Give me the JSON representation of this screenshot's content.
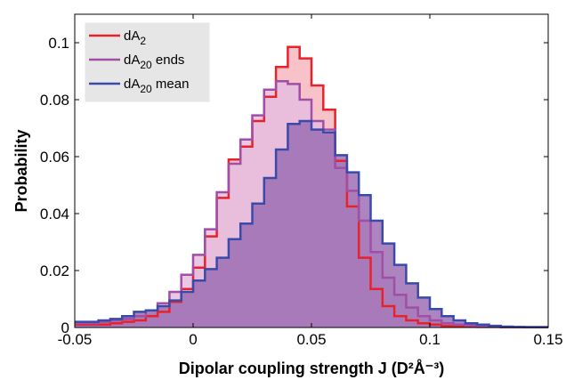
{
  "chart_data": {
    "type": "histogram",
    "xlabel": "Dipolar coupling strength J (D²Å⁻³)",
    "ylabel": "Probability",
    "xlim": [
      -0.05,
      0.15
    ],
    "ylim": [
      0,
      0.11
    ],
    "x_ticks": [
      "-0.05",
      "0",
      "0.05",
      "0.1",
      "0.15"
    ],
    "y_ticks": [
      "0",
      "0.02",
      "0.04",
      "0.06",
      "0.08",
      "0.1"
    ],
    "x_tick_values": [
      -0.05,
      0,
      0.05,
      0.1,
      0.15
    ],
    "y_tick_values": [
      0,
      0.02,
      0.04,
      0.06,
      0.08,
      0.1
    ],
    "grid": false,
    "legend_position": "top-left",
    "bin_width": 0.005,
    "bin_edges_start": -0.05,
    "series": [
      {
        "name": "dA2",
        "legend_base": "dA",
        "legend_sub": "2",
        "color": "#e8222a",
        "fill": "#f7b9be",
        "values": [
          0.001,
          0.001,
          0.001,
          0.0015,
          0.002,
          0.0025,
          0.004,
          0.0055,
          0.009,
          0.0135,
          0.021,
          0.032,
          0.0455,
          0.059,
          0.0635,
          0.0725,
          0.081,
          0.0915,
          0.0985,
          0.0945,
          0.085,
          0.0765,
          0.0585,
          0.0425,
          0.0245,
          0.0135,
          0.0075,
          0.004,
          0.0025,
          0.0015,
          0.001,
          0.0005,
          0.0005,
          0.0003,
          0.0002,
          0.0002,
          0.0001,
          0.0001,
          0.0001,
          0.0001
        ]
      },
      {
        "name": "dA20 ends",
        "legend_base": "dA",
        "legend_sub": "20",
        "legend_suffix": " ends",
        "color": "#a04ea6",
        "fill": "#e6bddf",
        "values": [
          0.0015,
          0.0015,
          0.002,
          0.0025,
          0.003,
          0.004,
          0.006,
          0.0085,
          0.0125,
          0.0185,
          0.0255,
          0.0345,
          0.0475,
          0.0575,
          0.066,
          0.0745,
          0.0835,
          0.0865,
          0.0855,
          0.08,
          0.0725,
          0.0695,
          0.056,
          0.048,
          0.0375,
          0.0265,
          0.0175,
          0.0115,
          0.007,
          0.004,
          0.0025,
          0.0015,
          0.001,
          0.0007,
          0.0005,
          0.0003,
          0.0002,
          0.0001,
          0.0001,
          0.0001
        ]
      },
      {
        "name": "dA20 mean",
        "legend_base": "dA",
        "legend_sub": "20",
        "legend_suffix": " mean",
        "color": "#3a4aa8",
        "fill": "#9d6fb4",
        "values": [
          0.002,
          0.002,
          0.0025,
          0.003,
          0.004,
          0.0055,
          0.006,
          0.0075,
          0.0095,
          0.0125,
          0.0165,
          0.0205,
          0.0245,
          0.031,
          0.0365,
          0.0435,
          0.0525,
          0.0625,
          0.0715,
          0.0725,
          0.0695,
          0.0685,
          0.0605,
          0.0545,
          0.0465,
          0.0375,
          0.0295,
          0.022,
          0.0155,
          0.0105,
          0.0065,
          0.004,
          0.0025,
          0.0015,
          0.001,
          0.0006,
          0.0003,
          0.0002,
          0.0001,
          0.0001
        ]
      }
    ]
  }
}
